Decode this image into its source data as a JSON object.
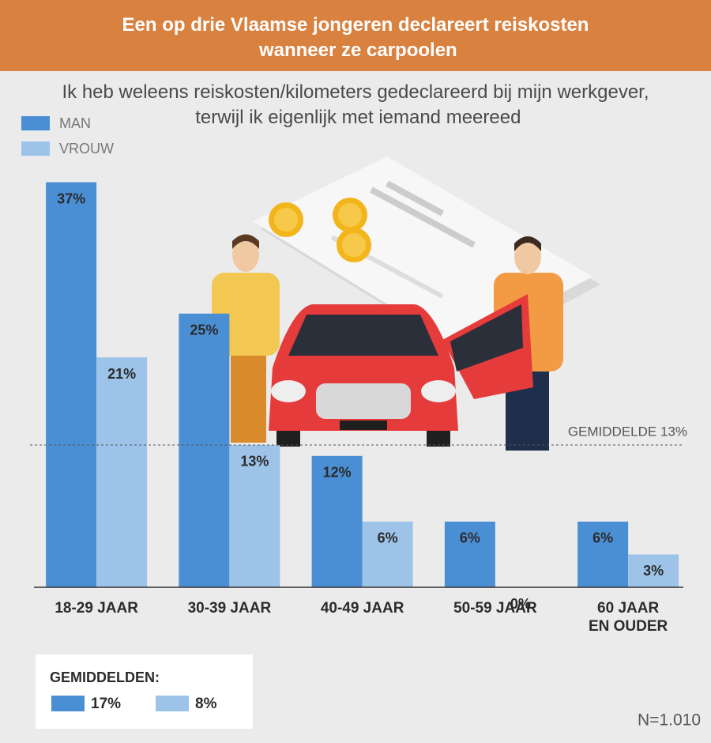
{
  "chart_data": {
    "type": "bar",
    "title": "Een op drie Vlaamse jongeren declareert reiskosten\nwanneer ze carpoolen",
    "subtitle": "Ik heb weleens reiskosten/kilometers gedeclareerd bij mijn werkgever,\nterwijl ik eigenlijk met iemand meereed",
    "categories": [
      "18-29 JAAR",
      "30-39 JAAR",
      "40-49 JAAR",
      "50-59 JAAR",
      "60 JAAR\nEN OUDER"
    ],
    "series": [
      {
        "name": "MAN",
        "color": "#4a8fd4",
        "values": [
          37,
          25,
          12,
          6,
          6
        ],
        "value_labels": [
          "37%",
          "25%",
          "12%",
          "6%",
          "6%"
        ]
      },
      {
        "name": "VROUW",
        "color": "#9dc3e8",
        "values": [
          21,
          13,
          6,
          0,
          3
        ],
        "value_labels": [
          "21%",
          "13%",
          "6%",
          "0%",
          "3%"
        ]
      }
    ],
    "ylim": [
      0,
      40
    ],
    "average_line": {
      "value": 13,
      "label": "GEMIDDELDE 13%"
    },
    "averages": {
      "title": "GEMIDDELDEN:",
      "labels": [
        "17%",
        "8%"
      ]
    },
    "note": "N=1.010"
  }
}
